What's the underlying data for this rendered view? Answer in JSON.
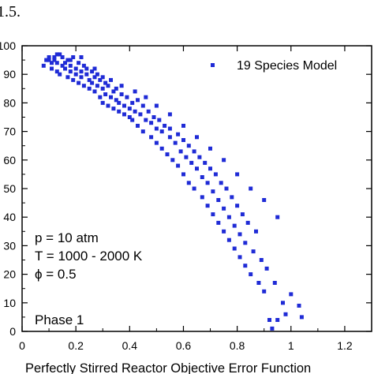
{
  "caption_fragment": "1.5.",
  "chart_data": {
    "type": "scatter",
    "title": "",
    "xlabel": "Perfectly Stirred Reactor Objective Error Function",
    "ylabel": "",
    "xlim": [
      0,
      1.3
    ],
    "ylim": [
      0,
      100
    ],
    "xticks": [
      "0",
      "0.2",
      "0.4",
      "0.6",
      "0.8",
      "1",
      "1.2"
    ],
    "yticks": [
      "0",
      "10",
      "20",
      "30",
      "40",
      "50",
      "60",
      "70",
      "80",
      "90",
      "100"
    ],
    "grid": false,
    "legend": {
      "position": "top-right",
      "entries": [
        "19 Species Model"
      ]
    },
    "annotations": [
      "p = 10 atm",
      "T = 1000 - 2000 K",
      "ϕ = 0.5",
      "Phase 1"
    ],
    "marker_color": "#1f2bd6",
    "series": [
      {
        "name": "19 Species Model",
        "points": [
          [
            0.08,
            93
          ],
          [
            0.09,
            95
          ],
          [
            0.1,
            96
          ],
          [
            0.11,
            94
          ],
          [
            0.11,
            92
          ],
          [
            0.12,
            96
          ],
          [
            0.12,
            95
          ],
          [
            0.13,
            91
          ],
          [
            0.13,
            94
          ],
          [
            0.14,
            97
          ],
          [
            0.14,
            90
          ],
          [
            0.15,
            93
          ],
          [
            0.15,
            96
          ],
          [
            0.16,
            92
          ],
          [
            0.16,
            94
          ],
          [
            0.17,
            89
          ],
          [
            0.17,
            95
          ],
          [
            0.18,
            91
          ],
          [
            0.18,
            93
          ],
          [
            0.19,
            96
          ],
          [
            0.19,
            88
          ],
          [
            0.2,
            92
          ],
          [
            0.2,
            90
          ],
          [
            0.21,
            94
          ],
          [
            0.21,
            87
          ],
          [
            0.22,
            91
          ],
          [
            0.22,
            89
          ],
          [
            0.23,
            93
          ],
          [
            0.23,
            86
          ],
          [
            0.24,
            90
          ],
          [
            0.24,
            92
          ],
          [
            0.25,
            88
          ],
          [
            0.25,
            85
          ],
          [
            0.26,
            91
          ],
          [
            0.26,
            87
          ],
          [
            0.27,
            89
          ],
          [
            0.27,
            84
          ],
          [
            0.28,
            86
          ],
          [
            0.28,
            90
          ],
          [
            0.29,
            82
          ],
          [
            0.29,
            88
          ],
          [
            0.3,
            85
          ],
          [
            0.3,
            80
          ],
          [
            0.31,
            87
          ],
          [
            0.31,
            83
          ],
          [
            0.32,
            79
          ],
          [
            0.32,
            86
          ],
          [
            0.33,
            82
          ],
          [
            0.34,
            84
          ],
          [
            0.34,
            78
          ],
          [
            0.35,
            81
          ],
          [
            0.35,
            85
          ],
          [
            0.36,
            77
          ],
          [
            0.36,
            80
          ],
          [
            0.37,
            83
          ],
          [
            0.38,
            76
          ],
          [
            0.38,
            79
          ],
          [
            0.39,
            82
          ],
          [
            0.4,
            75
          ],
          [
            0.4,
            78
          ],
          [
            0.41,
            80
          ],
          [
            0.41,
            74
          ],
          [
            0.42,
            77
          ],
          [
            0.43,
            81
          ],
          [
            0.43,
            72
          ],
          [
            0.44,
            76
          ],
          [
            0.45,
            79
          ],
          [
            0.45,
            70
          ],
          [
            0.46,
            74
          ],
          [
            0.47,
            77
          ],
          [
            0.48,
            68
          ],
          [
            0.48,
            73
          ],
          [
            0.49,
            75
          ],
          [
            0.5,
            66
          ],
          [
            0.5,
            71
          ],
          [
            0.51,
            74
          ],
          [
            0.52,
            64
          ],
          [
            0.52,
            70
          ],
          [
            0.53,
            72
          ],
          [
            0.54,
            62
          ],
          [
            0.55,
            68
          ],
          [
            0.55,
            71
          ],
          [
            0.56,
            60
          ],
          [
            0.57,
            66
          ],
          [
            0.58,
            69
          ],
          [
            0.58,
            58
          ],
          [
            0.59,
            63
          ],
          [
            0.6,
            67
          ],
          [
            0.6,
            55
          ],
          [
            0.61,
            61
          ],
          [
            0.62,
            65
          ],
          [
            0.62,
            52
          ],
          [
            0.63,
            59
          ],
          [
            0.64,
            63
          ],
          [
            0.64,
            50
          ],
          [
            0.65,
            57
          ],
          [
            0.66,
            61
          ],
          [
            0.67,
            47
          ],
          [
            0.67,
            54
          ],
          [
            0.68,
            59
          ],
          [
            0.69,
            44
          ],
          [
            0.69,
            52
          ],
          [
            0.7,
            57
          ],
          [
            0.71,
            41
          ],
          [
            0.71,
            49
          ],
          [
            0.72,
            55
          ],
          [
            0.73,
            38
          ],
          [
            0.73,
            46
          ],
          [
            0.74,
            52
          ],
          [
            0.75,
            35
          ],
          [
            0.75,
            43
          ],
          [
            0.76,
            50
          ],
          [
            0.77,
            32
          ],
          [
            0.77,
            40
          ],
          [
            0.78,
            47
          ],
          [
            0.79,
            29
          ],
          [
            0.79,
            37
          ],
          [
            0.8,
            44
          ],
          [
            0.81,
            26
          ],
          [
            0.81,
            34
          ],
          [
            0.82,
            41
          ],
          [
            0.83,
            23
          ],
          [
            0.83,
            31
          ],
          [
            0.84,
            38
          ],
          [
            0.85,
            20
          ],
          [
            0.86,
            28
          ],
          [
            0.87,
            35
          ],
          [
            0.88,
            17
          ],
          [
            0.89,
            25
          ],
          [
            0.9,
            14
          ],
          [
            0.91,
            22
          ],
          [
            0.92,
            4
          ],
          [
            0.93,
            1
          ],
          [
            0.94,
            17
          ],
          [
            0.95,
            4
          ],
          [
            0.97,
            10
          ],
          [
            0.98,
            6
          ],
          [
            1.0,
            13
          ],
          [
            1.03,
            9
          ],
          [
            1.04,
            5
          ],
          [
            0.1,
            95
          ],
          [
            0.13,
            97
          ],
          [
            0.18,
            95
          ],
          [
            0.22,
            96
          ],
          [
            0.27,
            92
          ],
          [
            0.3,
            89
          ],
          [
            0.33,
            88
          ],
          [
            0.37,
            86
          ],
          [
            0.42,
            84
          ],
          [
            0.46,
            82
          ],
          [
            0.5,
            79
          ],
          [
            0.55,
            76
          ],
          [
            0.6,
            72
          ],
          [
            0.65,
            68
          ],
          [
            0.7,
            64
          ],
          [
            0.75,
            60
          ],
          [
            0.8,
            55
          ],
          [
            0.85,
            50
          ],
          [
            0.9,
            46
          ],
          [
            0.95,
            40
          ]
        ]
      }
    ]
  }
}
